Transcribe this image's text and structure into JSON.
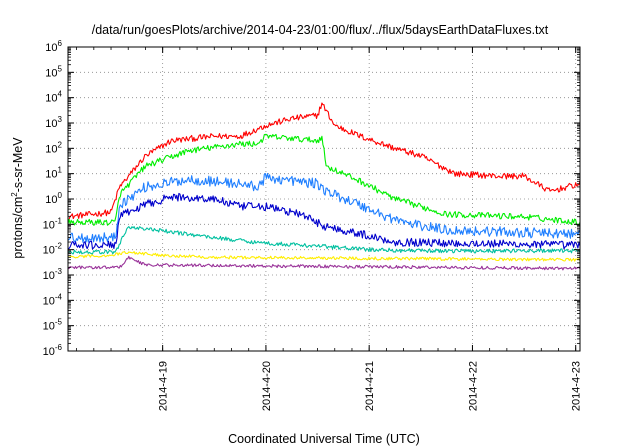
{
  "chart_data": {
    "type": "line",
    "title": "/data/run/goesPlots/archive/2014-04-23/01:00/flux/../flux/5daysEarthDataFluxes.txt",
    "xlabel": "Coordinated Universal Time (UTC)",
    "ylabel_main": "protons/cm",
    "ylabel_sup": "2",
    "ylabel_tail": "-s-sr-MeV",
    "x_scale": "time",
    "xlim": [
      "2014-04-18T02:00",
      "2014-04-23T01:00"
    ],
    "x_ticks": [
      {
        "label": "2014-4-19",
        "x": "2014-04-19T00:00"
      },
      {
        "label": "2014-4-20",
        "x": "2014-04-20T00:00"
      },
      {
        "label": "2014-4-21",
        "x": "2014-04-21T00:00"
      },
      {
        "label": "2014-4-22",
        "x": "2014-04-22T00:00"
      },
      {
        "label": "2014-4-23",
        "x": "2014-04-23T00:00"
      }
    ],
    "y_scale": "log",
    "ylim": [
      1e-06,
      1000000.0
    ],
    "y_ticks": [
      {
        "base": "10",
        "exp": "-6",
        "v": -6
      },
      {
        "base": "10",
        "exp": "-5",
        "v": -5
      },
      {
        "base": "10",
        "exp": "-4",
        "v": -4
      },
      {
        "base": "10",
        "exp": "-3",
        "v": -3
      },
      {
        "base": "10",
        "exp": "-2",
        "v": -2
      },
      {
        "base": "10",
        "exp": "-1",
        "v": -1
      },
      {
        "base": "10",
        "exp": "0",
        "v": 0
      },
      {
        "base": "10",
        "exp": "1",
        "v": 1
      },
      {
        "base": "10",
        "exp": "2",
        "v": 2
      },
      {
        "base": "10",
        "exp": "3",
        "v": 3
      },
      {
        "base": "10",
        "exp": "4",
        "v": 4
      },
      {
        "base": "10",
        "exp": "5",
        "v": 5
      },
      {
        "base": "10",
        "exp": "6",
        "v": 6
      }
    ],
    "grid": true,
    "series": [
      {
        "color": "#ff0000",
        "noise": 0.12,
        "points": [
          [
            "2014-04-18T02:00",
            0.2
          ],
          [
            "2014-04-18T12:00",
            0.3
          ],
          [
            "2014-04-18T14:00",
            3
          ],
          [
            "2014-04-18T20:00",
            50
          ],
          [
            "2014-04-19T02:00",
            200
          ],
          [
            "2014-04-19T12:00",
            300
          ],
          [
            "2014-04-19T18:00",
            300
          ],
          [
            "2014-04-20T00:00",
            800
          ],
          [
            "2014-04-20T06:00",
            1500
          ],
          [
            "2014-04-20T12:00",
            2000
          ],
          [
            "2014-04-20T13:00",
            6000
          ],
          [
            "2014-04-20T16:00",
            800
          ],
          [
            "2014-04-20T22:00",
            300
          ],
          [
            "2014-04-21T06:00",
            100
          ],
          [
            "2014-04-21T12:00",
            50
          ],
          [
            "2014-04-21T20:00",
            10
          ],
          [
            "2014-04-22T06:00",
            8
          ],
          [
            "2014-04-22T12:00",
            8
          ],
          [
            "2014-04-22T18:00",
            2
          ],
          [
            "2014-04-23T01:00",
            4
          ]
        ]
      },
      {
        "color": "#00ee00",
        "noise": 0.12,
        "points": [
          [
            "2014-04-18T02:00",
            0.12
          ],
          [
            "2014-04-18T13:00",
            0.12
          ],
          [
            "2014-04-18T14:00",
            1.5
          ],
          [
            "2014-04-18T20:00",
            20
          ],
          [
            "2014-04-19T06:00",
            80
          ],
          [
            "2014-04-19T18:00",
            150
          ],
          [
            "2014-04-19T22:00",
            150
          ],
          [
            "2014-04-20T00:00",
            300
          ],
          [
            "2014-04-20T12:00",
            200
          ],
          [
            "2014-04-20T13:00",
            300
          ],
          [
            "2014-04-20T14:00",
            20
          ],
          [
            "2014-04-20T22:00",
            5
          ],
          [
            "2014-04-21T06:00",
            1
          ],
          [
            "2014-04-21T12:00",
            0.5
          ],
          [
            "2014-04-21T18:00",
            0.25
          ],
          [
            "2014-04-22T12:00",
            0.2
          ],
          [
            "2014-04-23T01:00",
            0.12
          ]
        ]
      },
      {
        "color": "#1f7fff",
        "noise": 0.2,
        "points": [
          [
            "2014-04-18T02:00",
            0.03
          ],
          [
            "2014-04-18T13:00",
            0.03
          ],
          [
            "2014-04-18T14:00",
            0.6
          ],
          [
            "2014-04-18T20:00",
            3
          ],
          [
            "2014-04-19T06:00",
            6
          ],
          [
            "2014-04-19T18:00",
            4
          ],
          [
            "2014-04-19T22:00",
            3
          ],
          [
            "2014-04-20T00:00",
            7
          ],
          [
            "2014-04-20T12:00",
            4
          ],
          [
            "2014-04-20T14:00",
            2
          ],
          [
            "2014-04-20T20:00",
            0.8
          ],
          [
            "2014-04-21T04:00",
            0.2
          ],
          [
            "2014-04-21T10:00",
            0.1
          ],
          [
            "2014-04-21T18:00",
            0.06
          ],
          [
            "2014-04-23T01:00",
            0.04
          ]
        ]
      },
      {
        "color": "#0000cc",
        "noise": 0.16,
        "points": [
          [
            "2014-04-18T02:00",
            0.015
          ],
          [
            "2014-04-18T13:00",
            0.015
          ],
          [
            "2014-04-18T14:00",
            0.2
          ],
          [
            "2014-04-18T20:00",
            0.6
          ],
          [
            "2014-04-19T02:00",
            1.2
          ],
          [
            "2014-04-19T12:00",
            1
          ],
          [
            "2014-04-19T18:00",
            0.5
          ],
          [
            "2014-04-20T00:00",
            0.5
          ],
          [
            "2014-04-20T08:00",
            0.25
          ],
          [
            "2014-04-20T14:00",
            0.08
          ],
          [
            "2014-04-20T20:00",
            0.05
          ],
          [
            "2014-04-21T06:00",
            0.02
          ],
          [
            "2014-04-23T01:00",
            0.015
          ]
        ]
      },
      {
        "color": "#00c0a0",
        "noise": 0.08,
        "points": [
          [
            "2014-04-18T02:00",
            0.008
          ],
          [
            "2014-04-18T13:00",
            0.008
          ],
          [
            "2014-04-18T16:00",
            0.08
          ],
          [
            "2014-04-19T02:00",
            0.05
          ],
          [
            "2014-04-19T12:00",
            0.03
          ],
          [
            "2014-04-20T00:00",
            0.018
          ],
          [
            "2014-04-20T12:00",
            0.014
          ],
          [
            "2014-04-21T00:00",
            0.01
          ],
          [
            "2014-04-21T12:00",
            0.009
          ],
          [
            "2014-04-23T01:00",
            0.009
          ]
        ]
      },
      {
        "color": "#ffee00",
        "noise": 0.06,
        "points": [
          [
            "2014-04-18T02:00",
            0.005
          ],
          [
            "2014-04-18T12:00",
            0.006
          ],
          [
            "2014-04-18T16:00",
            0.008
          ],
          [
            "2014-04-19T00:00",
            0.006
          ],
          [
            "2014-04-19T12:00",
            0.005
          ],
          [
            "2014-04-23T01:00",
            0.004
          ]
        ]
      },
      {
        "color": "#993399",
        "noise": 0.06,
        "points": [
          [
            "2014-04-18T02:00",
            0.002
          ],
          [
            "2014-04-18T14:00",
            0.002
          ],
          [
            "2014-04-18T16:00",
            0.005
          ],
          [
            "2014-04-18T20:00",
            0.0025
          ],
          [
            "2014-04-23T01:00",
            0.0018
          ]
        ]
      }
    ]
  }
}
